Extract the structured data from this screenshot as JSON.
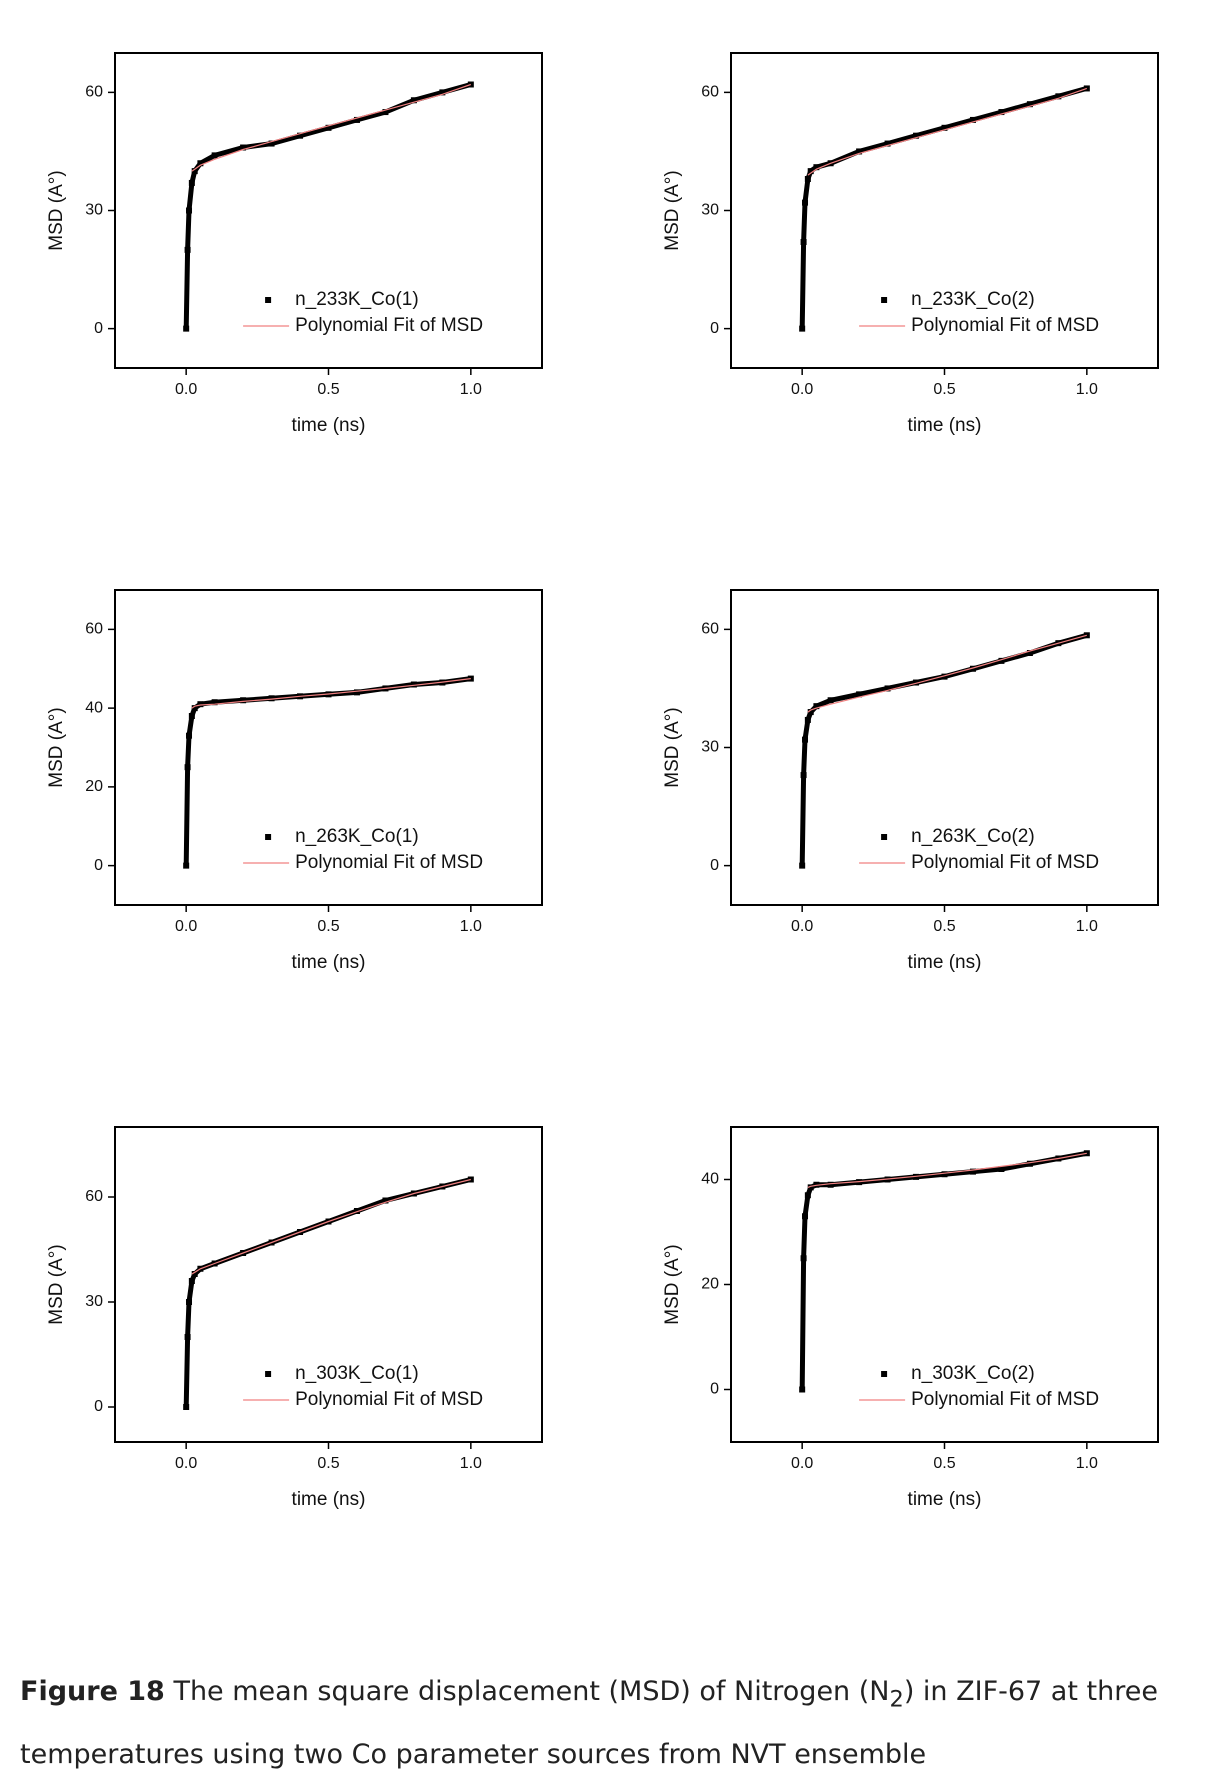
{
  "chart_data": [
    {
      "type": "scatter",
      "xlabel": "time (ns)",
      "ylabel": "MSD (A°)",
      "xlim": [
        -0.25,
        1.25
      ],
      "ylim": [
        -10,
        70
      ],
      "xticks": [
        {
          "value": 0,
          "label": "0.0"
        },
        0.5,
        {
          "value": 1,
          "label": "1.0"
        }
      ],
      "yticks": [
        0,
        30,
        60
      ],
      "legend": "lower right",
      "x": [
        0,
        0.005,
        0.01,
        0.02,
        0.03,
        0.05,
        0.1,
        0.2,
        0.3,
        0.4,
        0.5,
        0.6,
        0.7,
        0.8,
        0.9,
        1.0
      ],
      "series": [
        {
          "name": "n_233K_Co(1)",
          "color": "#000000",
          "values": [
            0,
            20,
            30,
            37,
            40,
            42,
            44,
            46,
            47,
            49,
            51,
            53,
            55,
            58,
            60,
            62
          ]
        },
        {
          "name": "Polynomial Fit of MSD",
          "color": "#f08080",
          "values": [
            null,
            null,
            null,
            40,
            40.5,
            41.5,
            43,
            45.5,
            47.5,
            49.5,
            51.5,
            53.5,
            55.5,
            57.5,
            59.5,
            62
          ]
        }
      ]
    },
    {
      "type": "scatter",
      "xlabel": "time (ns)",
      "ylabel": "MSD (A°)",
      "xlim": [
        -0.25,
        1.25
      ],
      "ylim": [
        -10,
        70
      ],
      "xticks": [
        {
          "value": 0,
          "label": "0.0"
        },
        0.5,
        {
          "value": 1,
          "label": "1.0"
        }
      ],
      "yticks": [
        0,
        30,
        60
      ],
      "legend": "lower right",
      "x": [
        0,
        0.005,
        0.01,
        0.02,
        0.03,
        0.05,
        0.1,
        0.2,
        0.3,
        0.4,
        0.5,
        0.6,
        0.7,
        0.8,
        0.9,
        1.0
      ],
      "series": [
        {
          "name": "n_233K_Co(2)",
          "color": "#000000",
          "values": [
            0,
            22,
            32,
            38,
            40,
            41,
            42,
            45,
            47,
            49,
            51,
            53,
            55,
            57,
            59,
            61
          ]
        },
        {
          "name": "Polynomial Fit of MSD",
          "color": "#f08080",
          "values": [
            null,
            null,
            null,
            39,
            39.5,
            40.5,
            42,
            44.5,
            46.5,
            48.5,
            50.5,
            52.5,
            54.5,
            56.5,
            58.5,
            61
          ]
        }
      ]
    },
    {
      "type": "scatter",
      "xlabel": "time (ns)",
      "ylabel": "MSD (A°)",
      "xlim": [
        -0.25,
        1.25
      ],
      "ylim": [
        -10,
        70
      ],
      "xticks": [
        {
          "value": 0,
          "label": "0.0"
        },
        0.5,
        {
          "value": 1,
          "label": "1.0"
        }
      ],
      "yticks": [
        0,
        20,
        40,
        60
      ],
      "legend": "lower right",
      "x": [
        0,
        0.005,
        0.01,
        0.02,
        0.03,
        0.05,
        0.1,
        0.2,
        0.3,
        0.4,
        0.5,
        0.6,
        0.7,
        0.8,
        0.9,
        1.0
      ],
      "series": [
        {
          "name": "n_263K_Co(1)",
          "color": "#000000",
          "values": [
            0,
            25,
            33,
            38,
            40,
            41,
            41.5,
            42,
            42.5,
            43,
            43.5,
            44,
            45,
            46,
            46.5,
            47.5
          ]
        },
        {
          "name": "Polynomial Fit of MSD",
          "color": "#f08080",
          "values": [
            null,
            null,
            null,
            40,
            40.5,
            40.8,
            41,
            41.7,
            42.3,
            43,
            43.6,
            44.3,
            45,
            45.8,
            46.6,
            47.5
          ]
        }
      ]
    },
    {
      "type": "scatter",
      "xlabel": "time (ns)",
      "ylabel": "MSD (A°)",
      "xlim": [
        -0.25,
        1.25
      ],
      "ylim": [
        -10,
        70
      ],
      "xticks": [
        {
          "value": 0,
          "label": "0.0"
        },
        0.5,
        {
          "value": 1,
          "label": "1.0"
        }
      ],
      "yticks": [
        0,
        30,
        60
      ],
      "legend": "lower right",
      "x": [
        0,
        0.005,
        0.01,
        0.02,
        0.03,
        0.05,
        0.1,
        0.2,
        0.3,
        0.4,
        0.5,
        0.6,
        0.7,
        0.8,
        0.9,
        1.0
      ],
      "series": [
        {
          "name": "n_263K_Co(2)",
          "color": "#000000",
          "values": [
            0,
            23,
            32,
            37,
            39,
            40.5,
            42,
            43.5,
            45,
            46.5,
            48,
            50,
            52,
            54,
            56.5,
            58.5
          ]
        },
        {
          "name": "Polynomial Fit of MSD",
          "color": "#f08080",
          "values": [
            null,
            null,
            null,
            39,
            39.5,
            40,
            41,
            42.8,
            44.5,
            46.3,
            48.2,
            50.2,
            52.3,
            54.5,
            56.5,
            58.5
          ]
        }
      ]
    },
    {
      "type": "scatter",
      "xlabel": "time (ns)",
      "ylabel": "MSD (A°)",
      "xlim": [
        -0.25,
        1.25
      ],
      "ylim": [
        -10,
        80
      ],
      "xticks": [
        {
          "value": 0,
          "label": "0.0"
        },
        0.5,
        {
          "value": 1,
          "label": "1.0"
        }
      ],
      "yticks": [
        0,
        30,
        60
      ],
      "legend": "lower right",
      "x": [
        0,
        0.005,
        0.01,
        0.02,
        0.03,
        0.05,
        0.1,
        0.2,
        0.3,
        0.4,
        0.5,
        0.6,
        0.7,
        0.8,
        0.9,
        1.0
      ],
      "series": [
        {
          "name": "n_303K_Co(1)",
          "color": "#000000",
          "values": [
            0,
            20,
            30,
            36,
            38,
            39.5,
            41,
            44,
            47,
            50,
            53,
            56,
            59,
            61,
            63,
            65
          ]
        },
        {
          "name": "Polynomial Fit of MSD",
          "color": "#f08080",
          "values": [
            null,
            null,
            null,
            38,
            38.5,
            39.5,
            41,
            44,
            47,
            50,
            53,
            55.8,
            58.5,
            61,
            63,
            65
          ]
        }
      ]
    },
    {
      "type": "scatter",
      "xlabel": "time (ns)",
      "ylabel": "MSD (A°)",
      "xlim": [
        -0.25,
        1.25
      ],
      "ylim": [
        -10,
        50
      ],
      "xticks": [
        {
          "value": 0,
          "label": "0.0"
        },
        0.5,
        {
          "value": 1,
          "label": "1.0"
        }
      ],
      "yticks": [
        0,
        20,
        40
      ],
      "legend": "lower right",
      "x": [
        0,
        0.005,
        0.01,
        0.02,
        0.03,
        0.05,
        0.1,
        0.2,
        0.3,
        0.4,
        0.5,
        0.6,
        0.7,
        0.8,
        0.9,
        1.0
      ],
      "series": [
        {
          "name": "n_303K_Co(2)",
          "color": "#000000",
          "values": [
            0,
            25,
            33,
            37,
            38.5,
            39,
            39,
            39.5,
            40,
            40.5,
            41,
            41.5,
            42,
            43,
            44,
            45
          ]
        },
        {
          "name": "Polynomial Fit of MSD",
          "color": "#f08080",
          "values": [
            null,
            null,
            null,
            38.5,
            38.7,
            38.9,
            39.2,
            39.6,
            40.1,
            40.6,
            41.2,
            41.8,
            42.5,
            43.2,
            44,
            45
          ]
        }
      ]
    }
  ],
  "caption": {
    "label": "Figure 18",
    "text_before": "The mean square displacement (MSD) of Nitrogen (N",
    "sub": "2",
    "text_after": ") in ZIF-67 at three temperatures using two Co parameter sources from NVT ensemble"
  }
}
